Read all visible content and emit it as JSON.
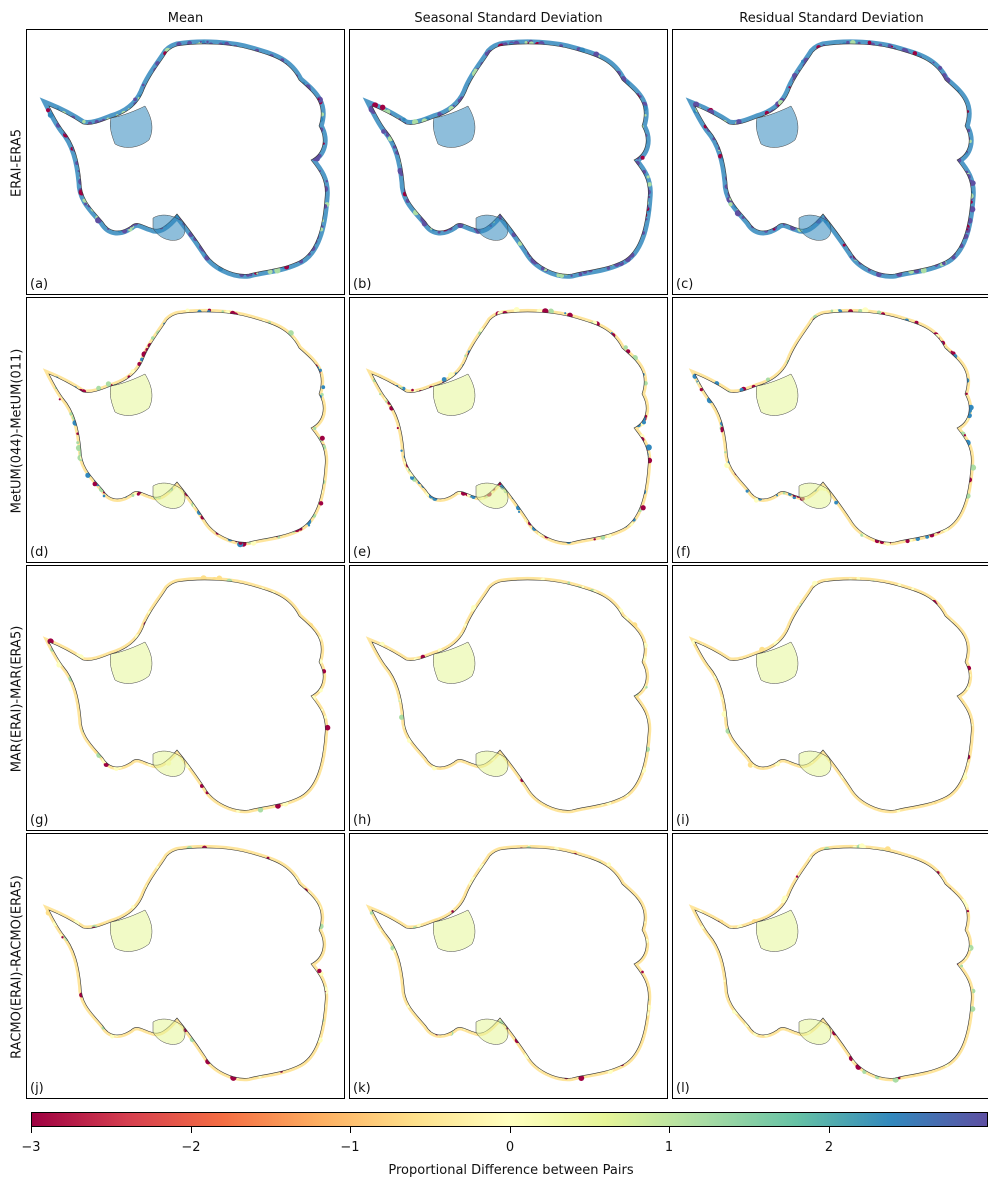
{
  "chart_data": {
    "type": "heatmap",
    "columns": [
      "Mean",
      "Seasonal Standard Deviation",
      "Residual Standard Deviation"
    ],
    "rows": [
      "ERAI-ERA5",
      "MetUM(044)-MetUM(011)",
      "MAR(ERAI)-MAR(ERA5)",
      "RACMO(ERAI)-RACMO(ERA5)"
    ],
    "panel_labels": [
      "(a)",
      "(b)",
      "(c)",
      "(d)",
      "(e)",
      "(f)",
      "(g)",
      "(h)",
      "(i)",
      "(j)",
      "(k)",
      "(l)"
    ],
    "panel_intensity": [
      [
        1.0,
        1.0,
        1.0
      ],
      [
        0.6,
        0.6,
        0.45
      ],
      [
        0.2,
        0.25,
        0.2
      ],
      [
        0.15,
        0.15,
        0.2
      ]
    ],
    "colorbar": {
      "colormap": "Spectral",
      "range": [
        -3,
        3
      ],
      "ticks": [
        -3,
        -2,
        -1,
        0,
        1,
        2
      ],
      "tick_labels": [
        "−3",
        "−2",
        "−1",
        "0",
        "1",
        "2"
      ],
      "label": "Proportional Difference between Pairs",
      "colors": [
        "#9e0142",
        "#d53e4f",
        "#f46d43",
        "#fdae61",
        "#fee08b",
        "#ffffbf",
        "#e6f598",
        "#abdda4",
        "#66c2a5",
        "#3288bd",
        "#5e4fa2"
      ]
    }
  }
}
